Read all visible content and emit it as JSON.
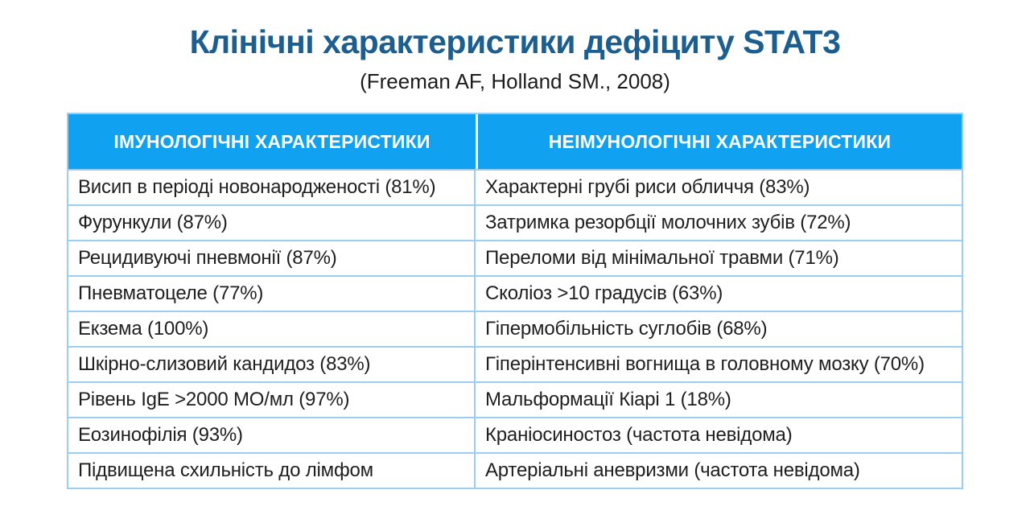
{
  "title": "Клінічні характеристики дефіциту STAT3",
  "subtitle": "(Freeman AF, Holland SM., 2008)",
  "colors": {
    "title_blue": "#1b5e8f",
    "header_blue": "#10a2f1",
    "border_blue": "#9ccdf2",
    "body_text": "#1f1f1f"
  },
  "table": {
    "headers": {
      "left": "ІМУНОЛОГІЧНІ ХАРАКТЕРИСТИКИ",
      "right": "НЕІМУНОЛОГІЧНІ ХАРАКТЕРИСТИКИ"
    },
    "rows": [
      {
        "left": "Висип в періоді новонародженості (81%)",
        "right": "Характерні грубі риси обличчя (83%)"
      },
      {
        "left": "Фурункули (87%)",
        "right": "Затримка резорбції молочних зубів (72%)"
      },
      {
        "left": "Рецидивуючі пневмонії (87%)",
        "right": "Переломи від мінімальної травми (71%)"
      },
      {
        "left": "Пневматоцеле (77%)",
        "right": "Сколіоз >10 градусів (63%)"
      },
      {
        "left": "Екзема (100%)",
        "right": "Гіпермобільність суглобів (68%)"
      },
      {
        "left": "Шкірно-слизовий кандидоз (83%)",
        "right": "Гіперінтенсивні вогнища в головному мозку (70%)"
      },
      {
        "left": "Рівень IgE >2000 МО/мл (97%)",
        "right": "Мальформації Кіарі 1 (18%)"
      },
      {
        "left": "Еозинофілія (93%)",
        "right": "Краніосиностоз (частота невідома)"
      },
      {
        "left": "Підвищена схильність до лімфом",
        "right": "Артеріальні аневризми (частота невідома)"
      }
    ]
  }
}
